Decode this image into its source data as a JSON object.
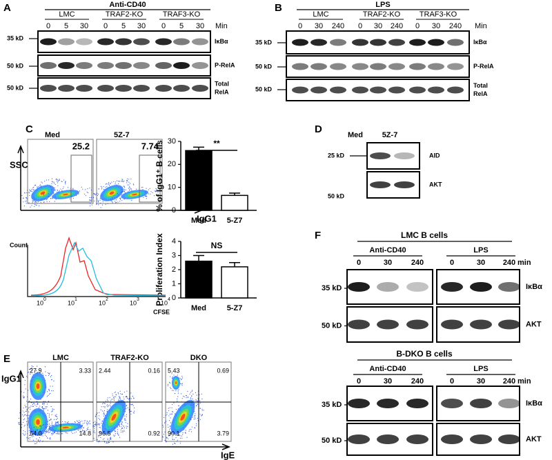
{
  "A": {
    "letter": "A",
    "treatment": "Anti-CD40",
    "groups": [
      "LMC",
      "TRAF2-KO",
      "TRAF3-KO"
    ],
    "times": [
      "0",
      "5",
      "30",
      "0",
      "5",
      "30",
      "0",
      "5",
      "30"
    ],
    "unit": "Min",
    "rows": [
      {
        "size": "35 kD",
        "label": [
          "IκBα"
        ]
      },
      {
        "size": "50 kD",
        "label": [
          "P-RelA"
        ]
      },
      {
        "size": "50 kD",
        "label": [
          "Total",
          "RelA"
        ]
      }
    ]
  },
  "B": {
    "letter": "B",
    "treatment": "LPS",
    "groups": [
      "LMC",
      "TRAF2-KO",
      "TRAF3-KO"
    ],
    "times": [
      "0",
      "30",
      "240",
      "0",
      "30",
      "240",
      "0",
      "30",
      "240"
    ],
    "unit": "Min",
    "rows": [
      {
        "size": "35 kD",
        "label": [
          "IκBα"
        ]
      },
      {
        "size": "50 kD",
        "label": [
          "P-RelA"
        ]
      },
      {
        "size": "50 kD",
        "label": [
          "Total",
          "RelA"
        ]
      }
    ]
  },
  "C": {
    "letter": "C",
    "flow": {
      "samples": [
        {
          "name": "Med",
          "gate": "25.2"
        },
        {
          "name": "5Z-7",
          "gate": "7.74"
        }
      ],
      "y_label": "SSC",
      "x_label": "IgG1"
    },
    "igg1_chart": {
      "type": "bar",
      "y_label": "% of IgG1⁺ B cells",
      "categories": [
        "Med",
        "5-Z7"
      ],
      "values": [
        26,
        6.5
      ],
      "errors": [
        1.5,
        1
      ],
      "colors": [
        "#000000",
        "#ffffff"
      ],
      "ylim": [
        0,
        30
      ],
      "yticks": [
        0,
        10,
        20,
        30
      ],
      "significance": "**"
    },
    "histogram": {
      "y_label": "Count",
      "x_label": "CFSE",
      "xticks": [
        {
          "base": "10",
          "exponent": "0"
        },
        {
          "base": "10",
          "exponent": "1"
        },
        {
          "base": "10",
          "exponent": "2"
        },
        {
          "base": "10",
          "exponent": "3"
        },
        {
          "base": "10",
          "exponent": "4"
        }
      ]
    },
    "prolif_chart": {
      "type": "bar",
      "y_label": "Proliferation Index",
      "categories": [
        "Med",
        "5-Z7"
      ],
      "values": [
        2.6,
        2.2
      ],
      "errors": [
        0.4,
        0.3
      ],
      "colors": [
        "#000000",
        "#ffffff"
      ],
      "ylim": [
        0,
        4
      ],
      "yticks": [
        0,
        1,
        2,
        3,
        4
      ],
      "significance": "NS"
    }
  },
  "D": {
    "letter": "D",
    "lanes": [
      "Med",
      "5Z-7"
    ],
    "rows": [
      {
        "size": "25 kD",
        "label": "AID"
      },
      {
        "size": "50 kD",
        "label": "AKT"
      }
    ]
  },
  "E": {
    "letter": "E",
    "x_label": "IgE",
    "y_label": "IgG1",
    "plots": [
      {
        "name": "LMC",
        "quadrants": [
          "27.9",
          "3.33",
          "54.0",
          "14.8"
        ]
      },
      {
        "name": "TRAF2-KO",
        "quadrants": [
          "2.44",
          "0.16",
          "96.5",
          "0.92"
        ]
      },
      {
        "name": "DKO",
        "quadrants": [
          "5.43",
          "0.69",
          "90.1",
          "3.79"
        ]
      }
    ]
  },
  "F": {
    "letter": "F",
    "blocks": [
      {
        "title": "LMC B cells",
        "groups": [
          "Anti-CD40",
          "LPS"
        ],
        "times": [
          "0",
          "30",
          "240",
          "0",
          "30",
          "240"
        ],
        "unit": "min",
        "rows": [
          {
            "size": "35 kD",
            "label": "IκBα"
          },
          {
            "size": "50 kD",
            "label": "AKT"
          }
        ]
      },
      {
        "title": "B-DKO B cells",
        "groups": [
          "Anti-CD40",
          "LPS"
        ],
        "times": [
          "0",
          "30",
          "240",
          "0",
          "30",
          "240"
        ],
        "unit": "min",
        "rows": [
          {
            "size": "35 kD",
            "label": "IκBα"
          },
          {
            "size": "50 kD",
            "label": "AKT"
          }
        ]
      }
    ]
  }
}
